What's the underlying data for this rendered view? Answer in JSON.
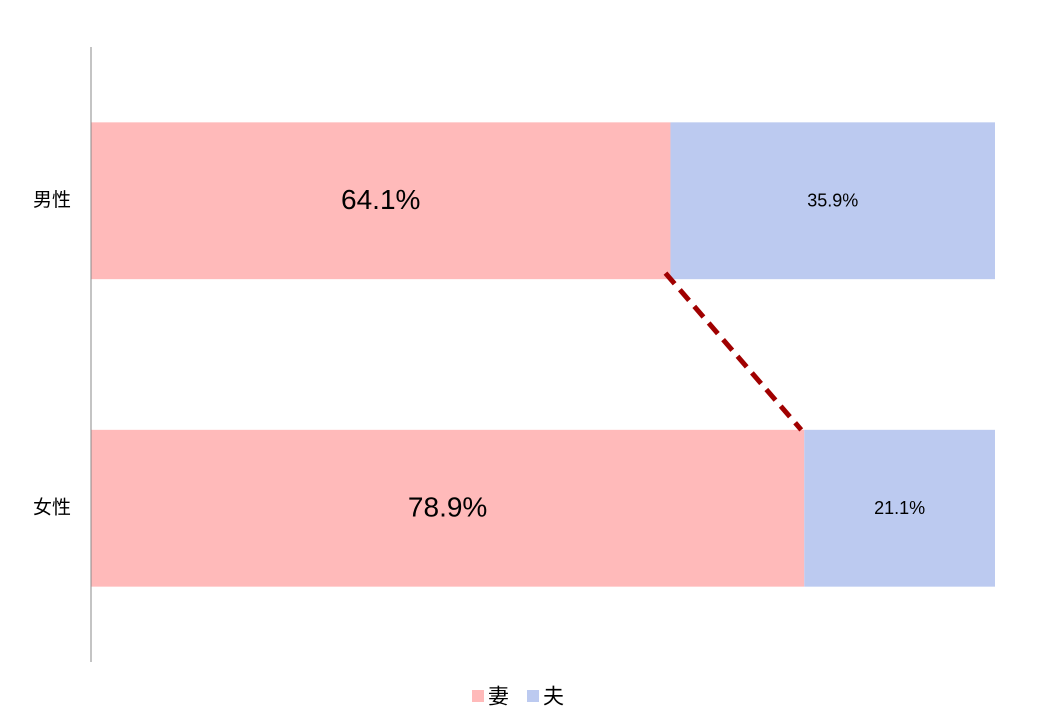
{
  "chart_data": {
    "type": "stacked_barh",
    "categories": [
      "男性",
      "女性"
    ],
    "series": [
      {
        "name": "妻",
        "color": "#ffbaba",
        "values": [
          64.1,
          78.9
        ],
        "value_labels": [
          "64.1%",
          "78.9%"
        ]
      },
      {
        "name": "夫",
        "color": "#bccaf0",
        "values": [
          35.9,
          21.1
        ],
        "value_labels": [
          "35.9%",
          "21.1%"
        ]
      }
    ],
    "xlim": [
      0,
      100
    ],
    "series_lines": {
      "color": "#a00000"
    },
    "legend": "bottom"
  }
}
